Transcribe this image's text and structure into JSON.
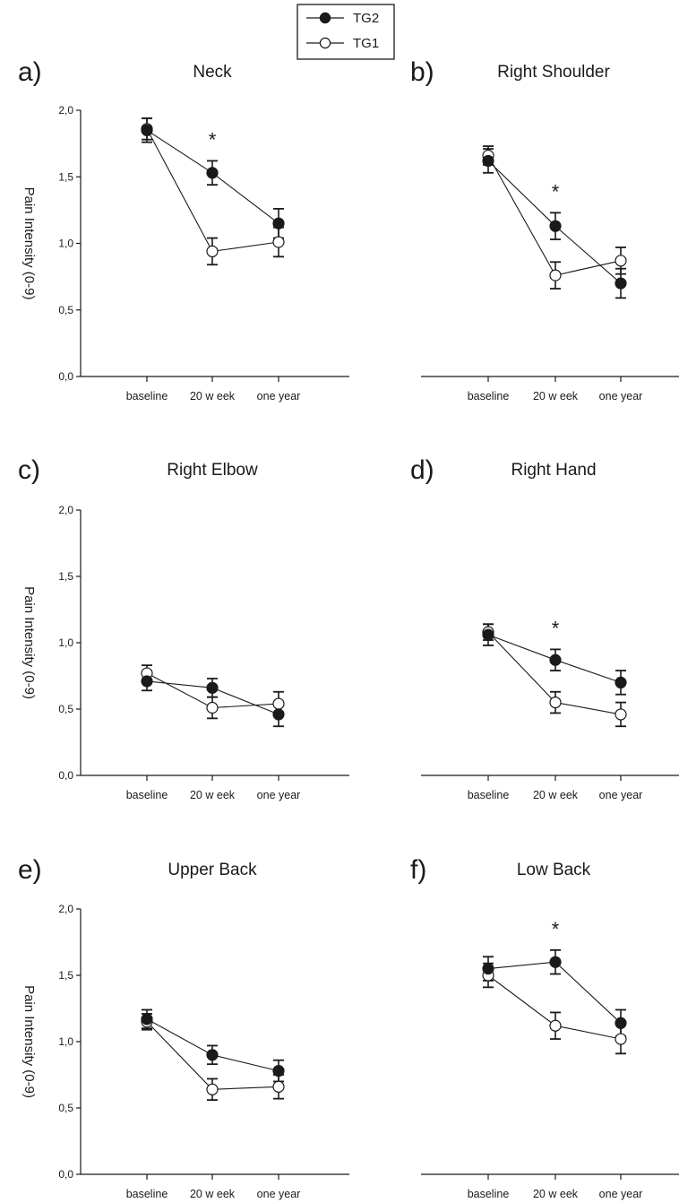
{
  "legend": {
    "entries": [
      {
        "label": "TG2",
        "marker": "filled-circle",
        "color": "#1a1a1a"
      },
      {
        "label": "TG1",
        "marker": "open-circle",
        "color": "#1a1a1a"
      }
    ]
  },
  "chart_data": [
    {
      "type": "line",
      "panel_label": "a)",
      "title": "Neck",
      "categories": [
        "baseline",
        "20 w eek",
        "one year"
      ],
      "ylabel": "Pain Intensity (0-9)",
      "ylim": [
        0,
        2.0
      ],
      "yticks": [
        "0,0",
        "0,5",
        "1,0",
        "1,5",
        "2,0"
      ],
      "series": [
        {
          "name": "TG2",
          "values": [
            1.85,
            1.53,
            1.15
          ],
          "errors": [
            0.09,
            0.09,
            0.11
          ]
        },
        {
          "name": "TG1",
          "values": [
            1.86,
            0.94,
            1.01
          ],
          "errors": [
            0.08,
            0.1,
            0.11
          ]
        }
      ],
      "significant": [
        false,
        true,
        false
      ],
      "annotation": "*"
    },
    {
      "type": "line",
      "panel_label": "b)",
      "title": "Right Shoulder",
      "categories": [
        "baseline",
        "20 w eek",
        "one year"
      ],
      "ylim": [
        0,
        2.0
      ],
      "series": [
        {
          "name": "TG2",
          "values": [
            1.62,
            1.13,
            0.7
          ],
          "errors": [
            0.09,
            0.1,
            0.11
          ]
        },
        {
          "name": "TG1",
          "values": [
            1.66,
            0.76,
            0.87
          ],
          "errors": [
            0.07,
            0.1,
            0.1
          ]
        }
      ],
      "significant": [
        false,
        true,
        false
      ],
      "annotation": "*"
    },
    {
      "type": "line",
      "panel_label": "c)",
      "title": "Right Elbow",
      "categories": [
        "baseline",
        "20 w eek",
        "one year"
      ],
      "ylabel": "Pain Intensity (0-9)",
      "ylim": [
        0,
        2.0
      ],
      "yticks": [
        "0,0",
        "0,5",
        "1,0",
        "1,5",
        "2,0"
      ],
      "series": [
        {
          "name": "TG2",
          "values": [
            0.71,
            0.66,
            0.46
          ],
          "errors": [
            0.07,
            0.07,
            0.09
          ]
        },
        {
          "name": "TG1",
          "values": [
            0.77,
            0.51,
            0.54
          ],
          "errors": [
            0.06,
            0.08,
            0.09
          ]
        }
      ],
      "significant": [
        false,
        false,
        false
      ],
      "annotation": ""
    },
    {
      "type": "line",
      "panel_label": "d)",
      "title": "Right Hand",
      "categories": [
        "baseline",
        "20 w eek",
        "one year"
      ],
      "ylim": [
        0,
        2.0
      ],
      "series": [
        {
          "name": "TG2",
          "values": [
            1.06,
            0.87,
            0.7
          ],
          "errors": [
            0.08,
            0.08,
            0.09
          ]
        },
        {
          "name": "TG1",
          "values": [
            1.08,
            0.55,
            0.46
          ],
          "errors": [
            0.06,
            0.08,
            0.09
          ]
        }
      ],
      "significant": [
        false,
        true,
        false
      ],
      "annotation": "*"
    },
    {
      "type": "line",
      "panel_label": "e)",
      "title": "Upper Back",
      "categories": [
        "baseline",
        "20 w eek",
        "one year"
      ],
      "ylabel": "Pain Intensity (0-9)",
      "ylim": [
        0,
        2.0
      ],
      "yticks": [
        "0,0",
        "0,5",
        "1,0",
        "1,5",
        "2,0"
      ],
      "series": [
        {
          "name": "TG2",
          "values": [
            1.17,
            0.9,
            0.78
          ],
          "errors": [
            0.07,
            0.07,
            0.08
          ]
        },
        {
          "name": "TG1",
          "values": [
            1.15,
            0.64,
            0.66
          ],
          "errors": [
            0.06,
            0.08,
            0.09
          ]
        }
      ],
      "significant": [
        false,
        false,
        false
      ],
      "annotation": ""
    },
    {
      "type": "line",
      "panel_label": "f)",
      "title": "Low Back",
      "categories": [
        "baseline",
        "20 w eek",
        "one year"
      ],
      "ylim": [
        0,
        2.0
      ],
      "series": [
        {
          "name": "TG2",
          "values": [
            1.55,
            1.6,
            1.14
          ],
          "errors": [
            0.09,
            0.09,
            0.1
          ]
        },
        {
          "name": "TG1",
          "values": [
            1.5,
            1.12,
            1.02
          ],
          "errors": [
            0.09,
            0.1,
            0.11
          ]
        }
      ],
      "significant": [
        false,
        true,
        false
      ],
      "annotation": "*"
    }
  ]
}
